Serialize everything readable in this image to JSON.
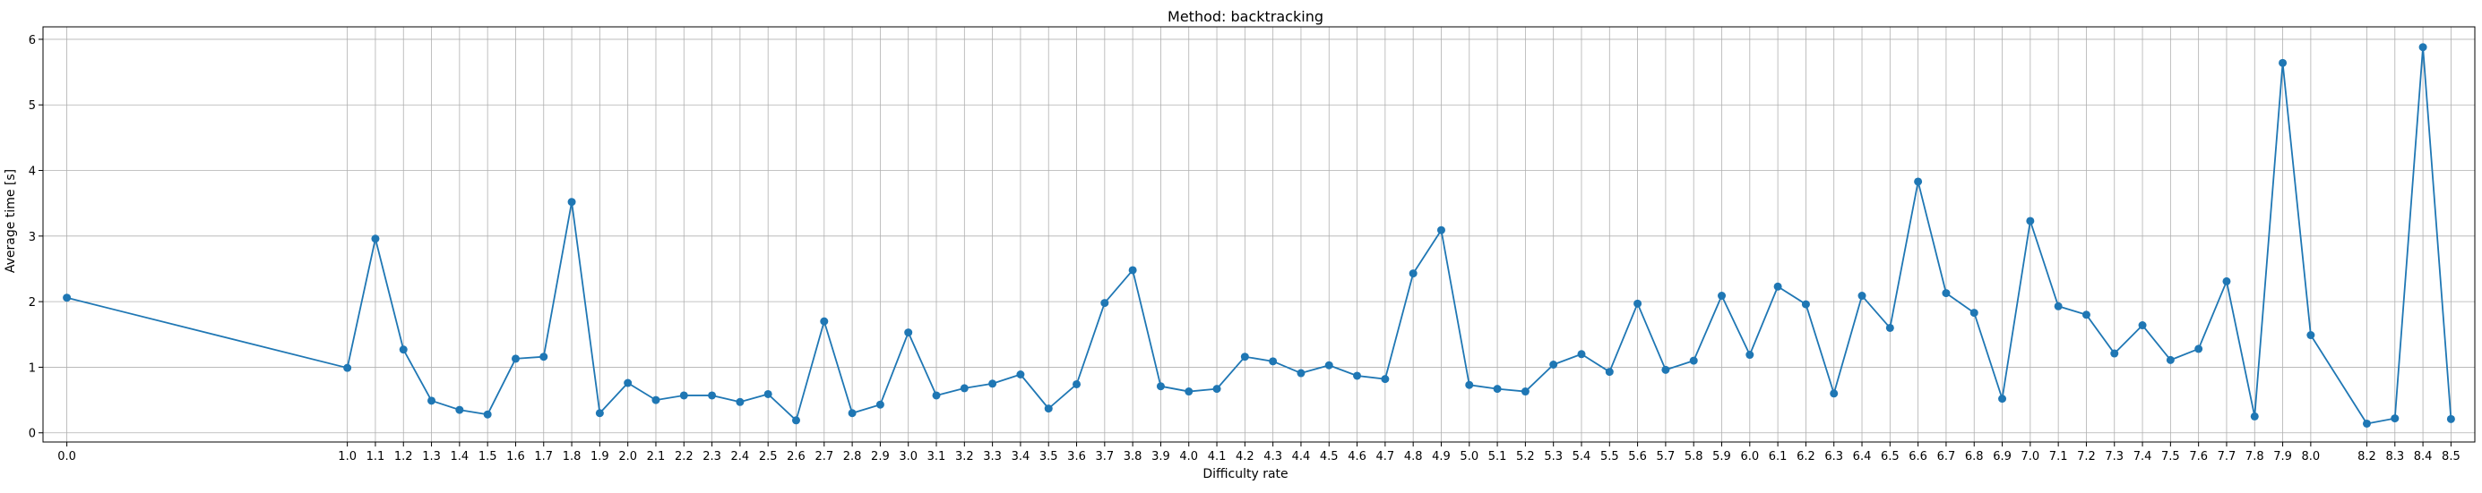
{
  "chart_data": {
    "type": "line",
    "title": "Method: backtracking",
    "xlabel": "Difficulty rate",
    "ylabel": "Average time [s]",
    "x": [
      0.0,
      1.0,
      1.1,
      1.2,
      1.3,
      1.4,
      1.5,
      1.6,
      1.7,
      1.8,
      1.9,
      2.0,
      2.1,
      2.2,
      2.3,
      2.4,
      2.5,
      2.6,
      2.7,
      2.8,
      2.9,
      3.0,
      3.1,
      3.2,
      3.3,
      3.4,
      3.5,
      3.6,
      3.7,
      3.8,
      3.9,
      4.0,
      4.1,
      4.2,
      4.3,
      4.4,
      4.5,
      4.6,
      4.7,
      4.8,
      4.9,
      5.0,
      5.1,
      5.2,
      5.3,
      5.4,
      5.5,
      5.6,
      5.7,
      5.8,
      5.9,
      6.0,
      6.1,
      6.2,
      6.3,
      6.4,
      6.5,
      6.6,
      6.7,
      6.8,
      6.9,
      7.0,
      7.1,
      7.2,
      7.3,
      7.4,
      7.5,
      7.6,
      7.7,
      7.8,
      7.9,
      8.0,
      8.2,
      8.3,
      8.4,
      8.5
    ],
    "x_tick_labels": [
      "0.0",
      "1.0",
      "1.1",
      "1.2",
      "1.3",
      "1.4",
      "1.5",
      "1.6",
      "1.7",
      "1.8",
      "1.9",
      "2.0",
      "2.1",
      "2.2",
      "2.3",
      "2.4",
      "2.5",
      "2.6",
      "2.7",
      "2.8",
      "2.9",
      "3.0",
      "3.1",
      "3.2",
      "3.3",
      "3.4",
      "3.5",
      "3.6",
      "3.7",
      "3.8",
      "3.9",
      "4.0",
      "4.1",
      "4.2",
      "4.3",
      "4.4",
      "4.5",
      "4.6",
      "4.7",
      "4.8",
      "4.9",
      "5.0",
      "5.1",
      "5.2",
      "5.3",
      "5.4",
      "5.5",
      "5.6",
      "5.7",
      "5.8",
      "5.9",
      "6.0",
      "6.1",
      "6.2",
      "6.3",
      "6.4",
      "6.5",
      "6.6",
      "6.7",
      "6.8",
      "6.9",
      "7.0",
      "7.1",
      "7.2",
      "7.3",
      "7.4",
      "7.5",
      "7.6",
      "7.7",
      "7.8",
      "7.9",
      "8.0",
      "8.2",
      "8.3",
      "8.4",
      "8.5"
    ],
    "series": [
      {
        "values": [
          2.06,
          0.99,
          2.96,
          1.27,
          0.49,
          0.35,
          0.28,
          1.13,
          1.16,
          3.52,
          0.3,
          0.76,
          0.5,
          0.57,
          0.57,
          0.47,
          0.59,
          0.19,
          1.7,
          0.3,
          0.43,
          1.53,
          0.57,
          0.68,
          0.75,
          0.89,
          0.37,
          0.74,
          1.98,
          2.48,
          0.71,
          0.63,
          0.67,
          1.16,
          1.09,
          0.91,
          1.03,
          0.87,
          0.82,
          2.43,
          3.09,
          0.73,
          0.67,
          0.63,
          1.04,
          1.2,
          0.93,
          1.97,
          0.96,
          1.1,
          2.09,
          1.19,
          2.23,
          1.96,
          0.6,
          2.09,
          1.6,
          3.83,
          2.13,
          1.83,
          0.52,
          3.23,
          1.93,
          1.8,
          1.21,
          1.64,
          1.11,
          1.28,
          2.31,
          0.25,
          5.64,
          1.49,
          0.14,
          0.22,
          5.88,
          0.21
        ],
        "color": "#1f77b4",
        "marker": "circle"
      }
    ],
    "yticks": [
      0,
      1,
      2,
      3,
      4,
      5,
      6
    ],
    "ylim": [
      -0.14,
      6.19
    ],
    "xlim": [
      -0.085,
      8.585
    ],
    "grid": true,
    "legend": "none"
  }
}
